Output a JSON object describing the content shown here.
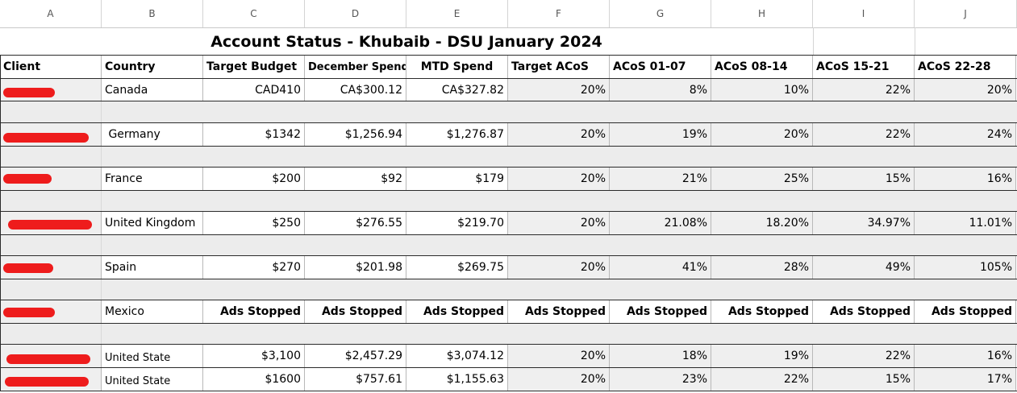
{
  "column_letters": [
    "A",
    "B",
    "C",
    "D",
    "E",
    "F",
    "G",
    "H",
    "I",
    "J"
  ],
  "title": "Account Status - Khubaib - DSU January 2024",
  "headers": {
    "client": "Client",
    "country": "Country",
    "target_budget": "Target Budget",
    "december_spend": "December Spend",
    "mtd_spend": "MTD Spend",
    "target_acos": "Target ACoS",
    "acos_01_07": "ACoS 01-07",
    "acos_08_14": "ACoS 08-14",
    "acos_15_21": "ACoS 15-21",
    "acos_22_28": "ACoS 22-28"
  },
  "rows": [
    {
      "country": "Canada",
      "target_budget": "CAD410",
      "december_spend": "CA$300.12",
      "mtd_spend": "CA$327.82",
      "target_acos": "20%",
      "acos_01_07": "8%",
      "acos_08_14": "10%",
      "acos_15_21": "22%",
      "acos_22_28": "20%"
    },
    {
      "country": " Germany",
      "target_budget": "$1342",
      "december_spend": "$1,256.94",
      "mtd_spend": "$1,276.87",
      "target_acos": "20%",
      "acos_01_07": "19%",
      "acos_08_14": "20%",
      "acos_15_21": "22%",
      "acos_22_28": "24%"
    },
    {
      "country": "France",
      "target_budget": "$200",
      "december_spend": "$92",
      "mtd_spend": "$179",
      "target_acos": "20%",
      "acos_01_07": "21%",
      "acos_08_14": "25%",
      "acos_15_21": "15%",
      "acos_22_28": "16%"
    },
    {
      "country": "United Kingdom",
      "target_budget": "$250",
      "december_spend": "$276.55",
      "mtd_spend": "$219.70",
      "target_acos": "20%",
      "acos_01_07": "21.08%",
      "acos_08_14": "18.20%",
      "acos_15_21": "34.97%",
      "acos_22_28": "11.01%"
    },
    {
      "country": "Spain",
      "target_budget": "$270",
      "december_spend": "$201.98",
      "mtd_spend": "$269.75",
      "target_acos": "20%",
      "acos_01_07": "41%",
      "acos_08_14": "28%",
      "acos_15_21": "49%",
      "acos_22_28": "105%"
    },
    {
      "country": "Mexico",
      "target_budget": "Ads Stopped",
      "december_spend": "Ads Stopped",
      "mtd_spend": "Ads Stopped",
      "target_acos": "Ads Stopped",
      "acos_01_07": "Ads Stopped",
      "acos_08_14": "Ads Stopped",
      "acos_15_21": "Ads Stopped",
      "acos_22_28": "Ads Stopped"
    },
    {
      "country": "United State",
      "target_budget": "$3,100",
      "december_spend": "$2,457.29",
      "mtd_spend": "$3,074.12",
      "target_acos": "20%",
      "acos_01_07": "18%",
      "acos_08_14": "19%",
      "acos_15_21": "22%",
      "acos_22_28": "16%"
    },
    {
      "country": "United State",
      "target_budget": "$1600",
      "december_spend": "$757.61",
      "mtd_spend": "$1,155.63",
      "target_acos": "20%",
      "acos_01_07": "23%",
      "acos_08_14": "22%",
      "acos_15_21": "15%",
      "acos_22_28": "17%"
    }
  ],
  "colors": {
    "redaction": "#ee1c1c",
    "shaded_cell": "#efefef",
    "gridline": "#2b2b2b"
  }
}
